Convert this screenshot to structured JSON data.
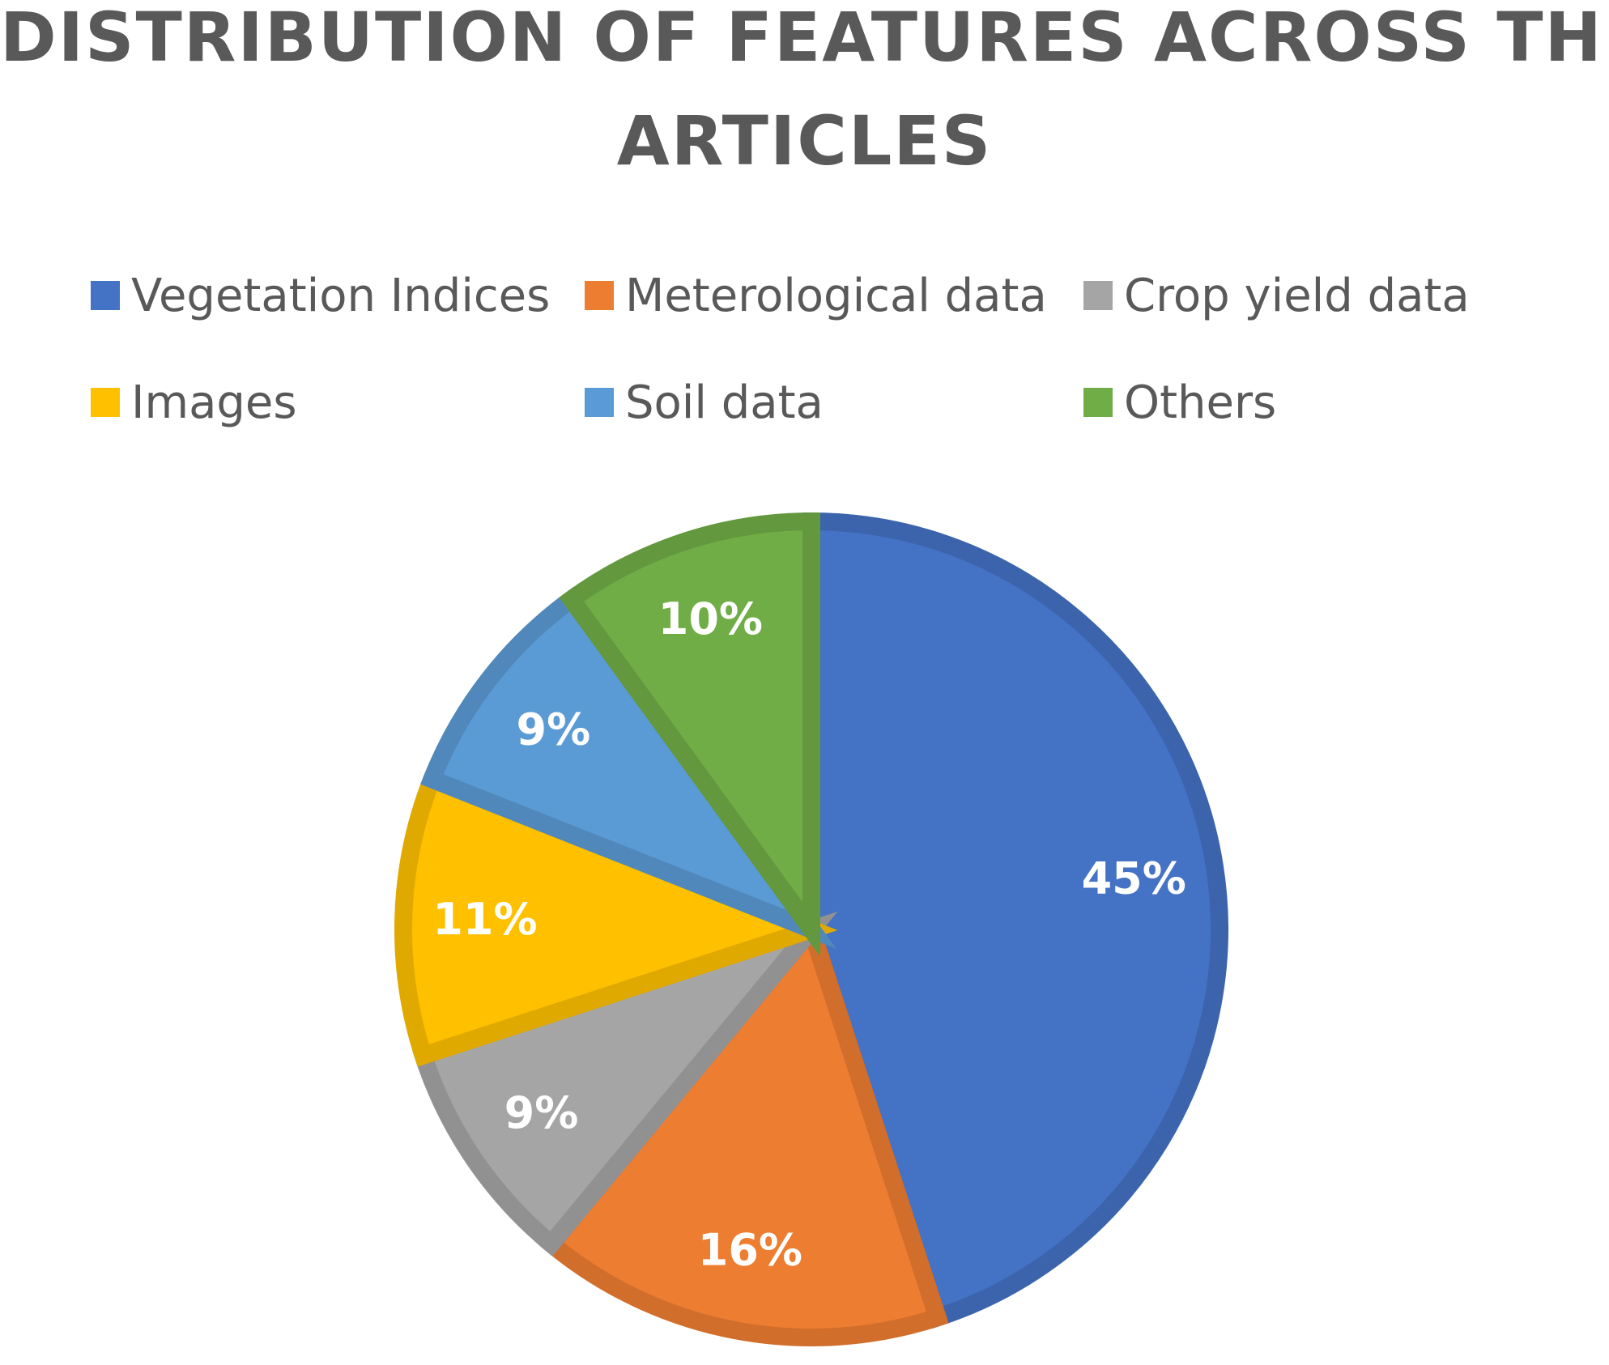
{
  "title": {
    "line1": "DISTRIBUTION OF FEATURES ACROSS THE",
    "line2": "ARTICLES"
  },
  "chart_data": {
    "type": "pie",
    "title": "DISTRIBUTION OF FEATURES ACROSS THE ARTICLES",
    "legend_position": "top",
    "slices": [
      {
        "label": "Vegetation Indices",
        "value": 45,
        "display": "45%",
        "color": "#4472C4"
      },
      {
        "label": "Meterological data",
        "value": 16,
        "display": "16%",
        "color": "#ED7D31"
      },
      {
        "label": "Crop yield data",
        "value": 9,
        "display": "9%",
        "color": "#A5A5A5"
      },
      {
        "label": "Images",
        "value": 11,
        "display": "11%",
        "color": "#FFC000"
      },
      {
        "label": "Soil data",
        "value": 9,
        "display": "9%",
        "color": "#5B9BD5"
      },
      {
        "label": "Others",
        "value": 10,
        "display": "10%",
        "color": "#70AD47"
      }
    ]
  }
}
